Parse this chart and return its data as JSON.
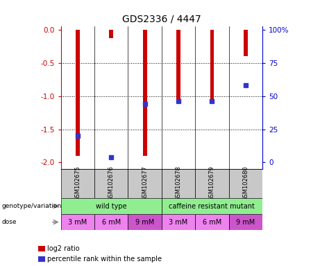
{
  "title": "GDS2336 / 4447",
  "samples": [
    "GSM102675",
    "GSM102676",
    "GSM102677",
    "GSM102678",
    "GSM102679",
    "GSM102680"
  ],
  "log2_ratios": [
    -1.9,
    -0.12,
    -1.9,
    -1.05,
    -1.05,
    -0.4
  ],
  "percentile_ranks": [
    20,
    4,
    44,
    46,
    46,
    58
  ],
  "ylim_left": [
    -2.1,
    0.05
  ],
  "ylim_right": [
    -2.625,
    2.75
  ],
  "yticks_left": [
    0.0,
    -0.5,
    -1.0,
    -1.5,
    -2.0
  ],
  "yticks_right_vals": [
    100,
    75,
    50,
    25,
    0
  ],
  "yticks_right_pos": [
    0.0,
    -0.5,
    -1.0,
    -1.5,
    -2.0
  ],
  "red_color": "#CC0000",
  "blue_color": "#3333CC",
  "bar_width": 0.12,
  "genotype_labels": [
    "wild type",
    "caffeine resistant mutant"
  ],
  "genotype_color_wt": "#90EE90",
  "genotype_color_cr": "#90EE90",
  "dose_labels": [
    "3 mM",
    "6 mM",
    "9 mM",
    "3 mM",
    "6 mM",
    "9 mM"
  ],
  "dose_colors": [
    "#EE82EE",
    "#EE82EE",
    "#CC55CC",
    "#EE82EE",
    "#EE82EE",
    "#CC55CC"
  ],
  "sample_bg_color": "#C8C8C8",
  "title_fontsize": 10,
  "axis_label_color_left": "#CC0000",
  "axis_label_color_right": "#0000CC",
  "grid_yticks": [
    -0.5,
    -1.0,
    -1.5
  ]
}
